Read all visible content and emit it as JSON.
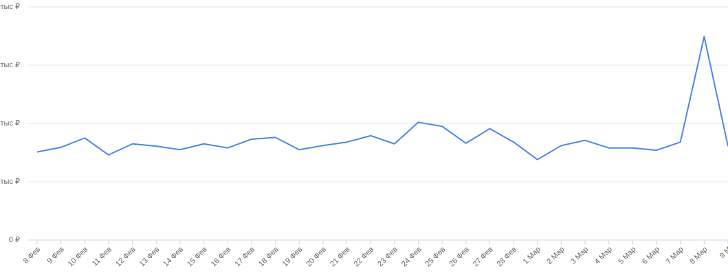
{
  "chart_data": {
    "type": "line",
    "categories": [
      "8 Фев",
      "9 Фев",
      "10 Фев",
      "11 Фев",
      "12 Фев",
      "13 Фев",
      "14 Фев",
      "15 Фев",
      "16 Фев",
      "17 Фев",
      "18 Фев",
      "19 Фев",
      "20 Фев",
      "21 Фев",
      "22 Фев",
      "23 Фев",
      "24 Фев",
      "25 Фев",
      "26 Фев",
      "27 Фев",
      "28 Фев",
      "1 Мар",
      "2 Мар",
      "3 Мар",
      "4 Мар",
      "5 Мар",
      "6 Мар",
      "7 Мар",
      "8 Мар",
      "9 М"
    ],
    "series": [
      {
        "color": "#4a86e8",
        "values": [
          1.51,
          1.59,
          1.75,
          1.46,
          1.65,
          1.61,
          1.55,
          1.65,
          1.58,
          1.73,
          1.76,
          1.55,
          1.62,
          1.68,
          1.79,
          1.65,
          2.02,
          1.95,
          1.66,
          1.91,
          1.68,
          1.38,
          1.62,
          1.71,
          1.58,
          1.58,
          1.54,
          1.68,
          3.49,
          1.61
        ]
      }
    ],
    "ylim": [
      0,
      4
    ],
    "yticks": [
      {
        "value": 0,
        "label": "0 ₽"
      },
      {
        "value": 1,
        "label": "тыс ₽"
      },
      {
        "value": 2,
        "label": "тыс ₽"
      },
      {
        "value": 3,
        "label": "тыс ₽"
      },
      {
        "value": 4,
        "label": "тыс ₽"
      }
    ],
    "grid": true
  }
}
